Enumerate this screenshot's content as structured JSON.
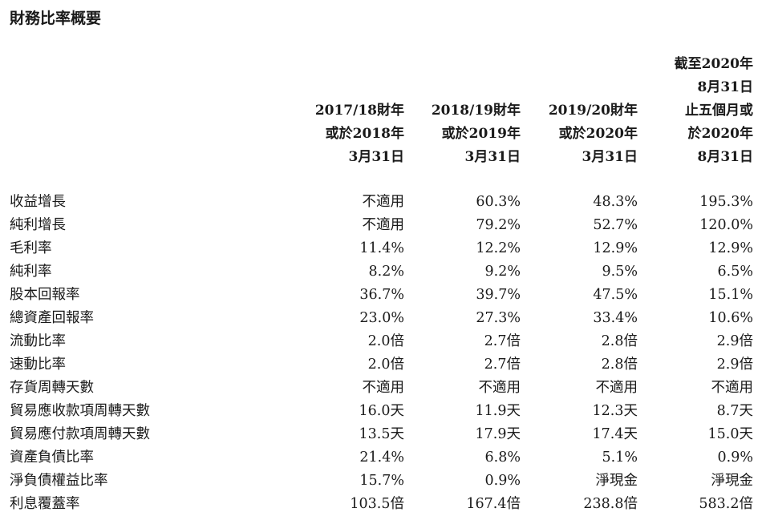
{
  "title": "財務比率概要",
  "columns": [
    [
      "2017/18財年",
      "或於2018年",
      "3月31日"
    ],
    [
      "2018/19財年",
      "或於2019年",
      "3月31日"
    ],
    [
      "2019/20財年",
      "或於2020年",
      "3月31日"
    ],
    [
      "截至2020年",
      "8月31日",
      "止五個月或",
      "於2020年",
      "8月31日"
    ]
  ],
  "rows": [
    {
      "label": "收益增長",
      "values": [
        "不適用",
        "60.3%",
        "48.3%",
        "195.3%"
      ]
    },
    {
      "label": "純利增長",
      "values": [
        "不適用",
        "79.2%",
        "52.7%",
        "120.0%"
      ]
    },
    {
      "label": "毛利率",
      "values": [
        "11.4%",
        "12.2%",
        "12.9%",
        "12.9%"
      ]
    },
    {
      "label": "純利率",
      "values": [
        "8.2%",
        "9.2%",
        "9.5%",
        "6.5%"
      ]
    },
    {
      "label": "股本回報率",
      "values": [
        "36.7%",
        "39.7%",
        "47.5%",
        "15.1%"
      ]
    },
    {
      "label": "總資產回報率",
      "values": [
        "23.0%",
        "27.3%",
        "33.4%",
        "10.6%"
      ]
    },
    {
      "label": "流動比率",
      "values": [
        "2.0倍",
        "2.7倍",
        "2.8倍",
        "2.9倍"
      ]
    },
    {
      "label": "速動比率",
      "values": [
        "2.0倍",
        "2.7倍",
        "2.8倍",
        "2.9倍"
      ]
    },
    {
      "label": "存貨周轉天數",
      "values": [
        "不適用",
        "不適用",
        "不適用",
        "不適用"
      ]
    },
    {
      "label": "貿易應收款項周轉天數",
      "values": [
        "16.0天",
        "11.9天",
        "12.3天",
        "8.7天"
      ]
    },
    {
      "label": "貿易應付款項周轉天數",
      "values": [
        "13.5天",
        "17.9天",
        "17.4天",
        "15.0天"
      ]
    },
    {
      "label": "資產負債比率",
      "values": [
        "21.4%",
        "6.8%",
        "5.1%",
        "0.9%"
      ]
    },
    {
      "label": "淨負債權益比率",
      "values": [
        "15.7%",
        "0.9%",
        "淨現金",
        "淨現金"
      ]
    },
    {
      "label": "利息覆蓋率",
      "values": [
        "103.5倍",
        "167.4倍",
        "238.8倍",
        "583.2倍"
      ]
    }
  ]
}
